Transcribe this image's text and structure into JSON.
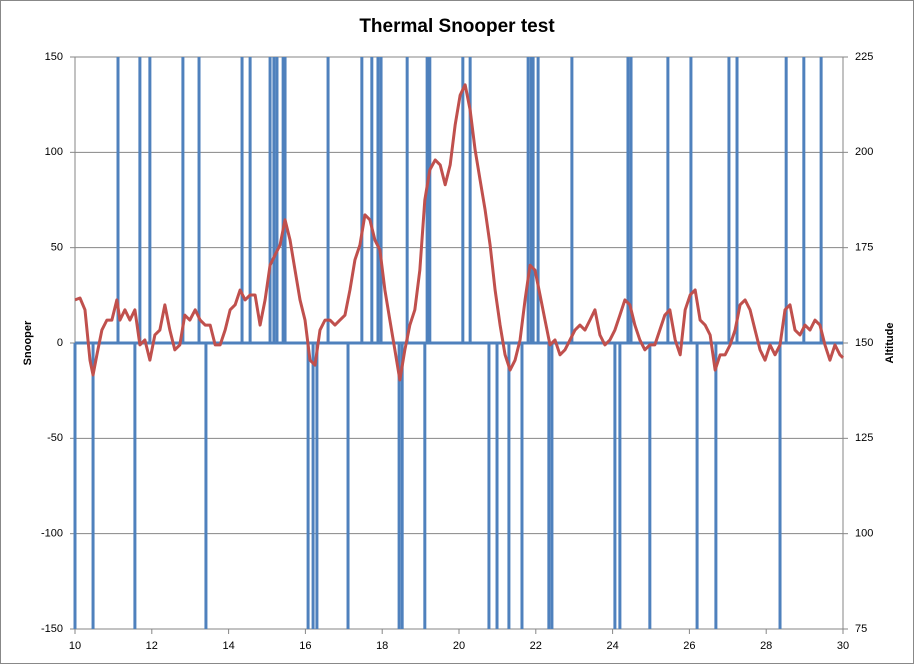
{
  "chart_data": {
    "type": "combo",
    "title": "Thermal Snooper test",
    "y_label": "Snooper",
    "y2_label": "Altitude",
    "xlim": [
      10,
      30
    ],
    "xticks": [
      10,
      12,
      14,
      16,
      18,
      20,
      22,
      24,
      26,
      28,
      30
    ],
    "ylim": [
      -150,
      150
    ],
    "yticks": [
      -150,
      -100,
      -50,
      0,
      50,
      100,
      150
    ],
    "y2lim": [
      75,
      225
    ],
    "y2ticks": [
      75,
      100,
      125,
      150,
      175,
      200,
      225
    ],
    "grid": true,
    "series": [
      {
        "type": "bar",
        "color": "#4f81bd",
        "x": [
          10.0,
          10.47,
          11.12,
          11.56,
          11.69,
          11.95,
          12.81,
          13.23,
          13.41,
          14.35,
          14.56,
          15.08,
          15.18,
          15.26,
          15.42,
          15.47,
          16.07,
          16.2,
          16.3,
          16.59,
          17.11,
          17.47,
          17.73,
          17.89,
          17.97,
          18.44,
          18.52,
          18.65,
          19.11,
          19.17,
          19.24,
          20.1,
          20.29,
          20.78,
          20.99,
          21.3,
          21.64,
          21.8,
          21.88,
          21.93,
          22.06,
          22.34,
          22.42,
          22.94,
          24.06,
          24.19,
          24.4,
          24.48,
          24.97,
          25.44,
          26.04,
          26.2,
          26.69,
          27.03,
          27.24,
          28.36,
          28.52,
          28.98,
          29.43
        ],
        "values": [
          -150,
          -150,
          150,
          -150,
          150,
          150,
          150,
          150,
          -150,
          150,
          150,
          150,
          150,
          150,
          150,
          150,
          -150,
          -150,
          -150,
          150,
          -150,
          150,
          150,
          150,
          150,
          -150,
          -150,
          150,
          -150,
          150,
          150,
          150,
          150,
          -150,
          -150,
          -150,
          -150,
          150,
          150,
          150,
          150,
          -150,
          -150,
          150,
          -150,
          -150,
          150,
          150,
          -150,
          150,
          150,
          -150,
          -150,
          150,
          150,
          -150,
          150,
          150,
          150
        ]
      },
      {
        "type": "line",
        "axis": "y2",
        "color": "#c0504d",
        "x": [
          10.0,
          10.13,
          10.26,
          10.39,
          10.47,
          10.57,
          10.7,
          10.83,
          10.96,
          11.09,
          11.17,
          11.3,
          11.43,
          11.56,
          11.69,
          11.82,
          11.95,
          12.08,
          12.21,
          12.34,
          12.47,
          12.6,
          12.73,
          12.86,
          12.99,
          13.13,
          13.26,
          13.39,
          13.52,
          13.65,
          13.78,
          13.91,
          14.04,
          14.17,
          14.3,
          14.43,
          14.56,
          14.69,
          14.82,
          14.95,
          15.08,
          15.21,
          15.34,
          15.47,
          15.6,
          15.73,
          15.86,
          15.99,
          16.12,
          16.25,
          16.38,
          16.51,
          16.64,
          16.77,
          16.9,
          17.03,
          17.16,
          17.29,
          17.42,
          17.55,
          17.68,
          17.81,
          17.94,
          18.07,
          18.2,
          18.33,
          18.46,
          18.59,
          18.72,
          18.85,
          18.98,
          19.11,
          19.24,
          19.38,
          19.51,
          19.64,
          19.77,
          19.9,
          20.03,
          20.16,
          20.29,
          20.42,
          20.55,
          20.68,
          20.81,
          20.94,
          21.07,
          21.2,
          21.33,
          21.46,
          21.59,
          21.72,
          21.85,
          21.98,
          22.11,
          22.24,
          22.37,
          22.5,
          22.63,
          22.76,
          22.89,
          23.02,
          23.15,
          23.28,
          23.41,
          23.54,
          23.67,
          23.8,
          23.93,
          24.06,
          24.19,
          24.32,
          24.45,
          24.58,
          24.71,
          24.84,
          24.97,
          25.1,
          25.23,
          25.36,
          25.49,
          25.63,
          25.76,
          25.89,
          26.02,
          26.15,
          26.28,
          26.41,
          26.54,
          26.67,
          26.8,
          26.93,
          27.06,
          27.19,
          27.32,
          27.45,
          27.58,
          27.71,
          27.84,
          27.97,
          28.1,
          28.23,
          28.36,
          28.49,
          28.62,
          28.75,
          28.88,
          29.01,
          29.14,
          29.27,
          29.4,
          29.53,
          29.66,
          29.79,
          29.92,
          30.0
        ],
        "values": [
          161.3,
          161.8,
          158.7,
          145.5,
          141.6,
          146.9,
          153.4,
          156.0,
          156.0,
          161.3,
          156.0,
          158.7,
          156.0,
          158.7,
          149.5,
          150.8,
          145.5,
          152.1,
          153.4,
          160.0,
          153.4,
          148.2,
          149.5,
          157.3,
          156.0,
          158.7,
          156.0,
          154.7,
          154.7,
          149.5,
          149.5,
          153.4,
          158.7,
          160.0,
          163.9,
          161.3,
          162.6,
          162.6,
          154.7,
          161.3,
          170.4,
          173.1,
          175.7,
          182.3,
          177.0,
          169.1,
          161.3,
          156.0,
          145.5,
          144.2,
          153.4,
          156.0,
          156.0,
          154.7,
          156.0,
          157.3,
          163.9,
          171.8,
          175.7,
          183.6,
          182.3,
          177.0,
          174.4,
          163.9,
          156.0,
          148.2,
          140.3,
          148.2,
          154.7,
          158.7,
          169.1,
          187.5,
          195.4,
          198.0,
          196.7,
          191.5,
          196.7,
          207.2,
          215.0,
          217.7,
          211.1,
          200.6,
          192.7,
          184.9,
          175.7,
          163.9,
          154.7,
          146.9,
          142.9,
          145.5,
          150.8,
          161.3,
          170.4,
          169.1,
          162.6,
          156.0,
          149.5,
          150.8,
          146.9,
          148.2,
          150.8,
          153.4,
          154.7,
          153.4,
          156.0,
          158.7,
          152.1,
          149.5,
          150.8,
          153.4,
          157.3,
          161.3,
          160.0,
          154.7,
          150.8,
          148.2,
          149.5,
          149.5,
          153.4,
          157.3,
          158.7,
          150.8,
          146.9,
          158.7,
          162.6,
          163.9,
          156.0,
          154.7,
          152.1,
          142.9,
          146.9,
          146.9,
          149.5,
          153.4,
          160.0,
          161.3,
          158.7,
          153.4,
          148.2,
          145.5,
          149.5,
          146.9,
          149.5,
          158.7,
          160.0,
          153.4,
          152.1,
          154.7,
          153.4,
          156.0,
          154.7,
          149.5,
          145.5,
          149.5,
          146.9,
          146.1
        ]
      }
    ]
  }
}
